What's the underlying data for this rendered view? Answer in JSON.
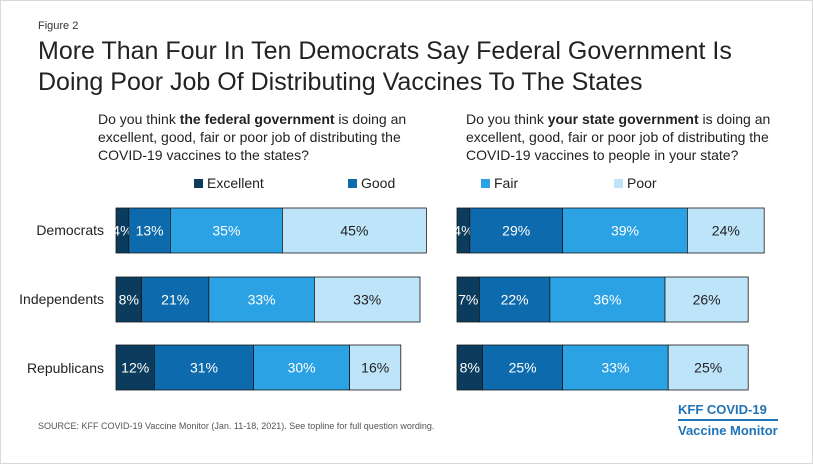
{
  "figure_label": "Figure 2",
  "title": "More Than Four In Ten Democrats Say Federal Government Is Doing Poor Job Of Distributing Vaccines To The States",
  "source": "SOURCE: KFF COVID-19 Vaccine Monitor (Jan. 11-18, 2021). See topline for full question wording.",
  "logo": {
    "line1": "KFF COVID-19",
    "line2": "Vaccine Monitor"
  },
  "colors": {
    "Excellent": "#0b3c5d",
    "Good": "#0d6bad",
    "Fair": "#2aa2e3",
    "Poor": "#bde4f8"
  },
  "legend": [
    "Excellent",
    "Good",
    "Fair",
    "Poor"
  ],
  "chart_data": [
    {
      "type": "bar",
      "orientation": "horizontal-stacked",
      "question": {
        "pre": "Do you think ",
        "bold": "the federal government",
        "post": " is doing an excellent, good, fair or poor job of distributing the COVID-19 vaccines to the states?"
      },
      "categories": [
        "Democrats",
        "Independents",
        "Republicans"
      ],
      "series": [
        {
          "name": "Excellent",
          "values": [
            4,
            8,
            12
          ]
        },
        {
          "name": "Good",
          "values": [
            13,
            21,
            31
          ]
        },
        {
          "name": "Fair",
          "values": [
            35,
            33,
            30
          ]
        },
        {
          "name": "Poor",
          "values": [
            45,
            33,
            16
          ]
        }
      ],
      "value_suffix": "%"
    },
    {
      "type": "bar",
      "orientation": "horizontal-stacked",
      "question": {
        "pre": "Do you think ",
        "bold": "your state government",
        "post": " is doing an excellent, good, fair or poor job of distributing the COVID-19 vaccines to people in your state?"
      },
      "categories": [
        "Democrats",
        "Independents",
        "Republicans"
      ],
      "series": [
        {
          "name": "Excellent",
          "values": [
            4,
            7,
            8
          ]
        },
        {
          "name": "Good",
          "values": [
            29,
            22,
            25
          ]
        },
        {
          "name": "Fair",
          "values": [
            39,
            36,
            33
          ]
        },
        {
          "name": "Poor",
          "values": [
            24,
            26,
            25
          ]
        }
      ],
      "value_suffix": "%"
    }
  ]
}
